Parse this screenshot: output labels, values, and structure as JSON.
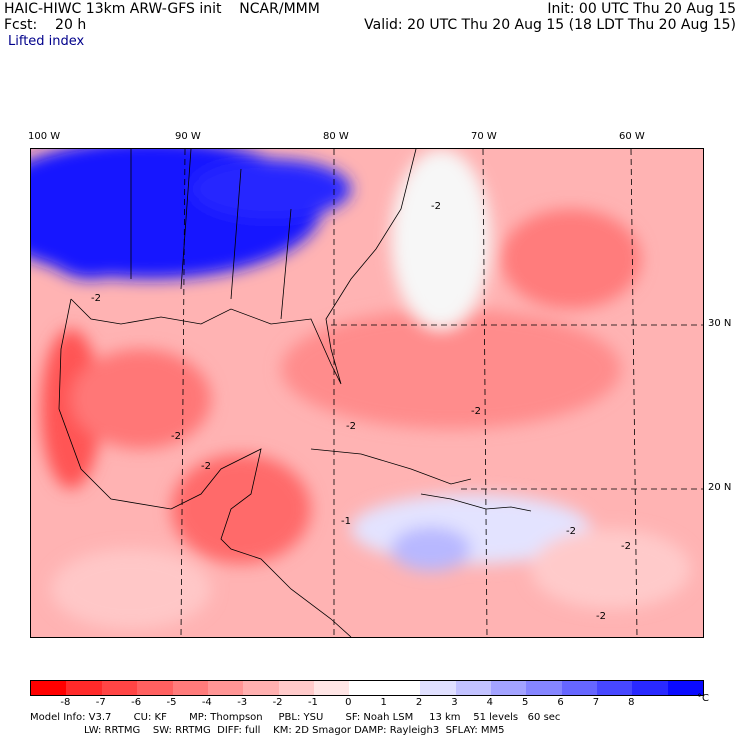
{
  "header": {
    "line1_left": "HAIC-HIWC 13km ARW-GFS init    NCAR/MMM",
    "line2_left": "Fcst:    20 h",
    "line3_left": "Lifted index",
    "line1_right": "Init: 00 UTC Thu 20 Aug 15",
    "line2_right": "Valid: 20 UTC Thu 20 Aug 15 (18 LDT Thu 20 Aug 15)"
  },
  "map": {
    "lon_labels": [
      "100 W",
      "90 W",
      "80 W",
      "70 W",
      "60 W"
    ],
    "lat_labels": [
      "30 N",
      "20 N"
    ],
    "contour_labels": [
      "-2",
      "-2",
      "-2",
      "-2",
      "-2",
      "-1",
      "-2",
      "-2",
      "-2",
      "-2"
    ]
  },
  "colorbar": {
    "colors": [
      "#ff0000",
      "#ff2a2a",
      "#ff4545",
      "#ff6060",
      "#ff7b7b",
      "#ff9595",
      "#ffb0b0",
      "#ffcaca",
      "#ffe5e5",
      "#ffffff",
      "#ffffff",
      "#e0e0ff",
      "#c2c2ff",
      "#a3a3ff",
      "#8585ff",
      "#6666ff",
      "#4747ff",
      "#2929ff",
      "#0a0aff"
    ],
    "labels": [
      "-8",
      "-7",
      "-6",
      "-5",
      "-4",
      "-3",
      "-2",
      "-1",
      "0",
      "1",
      "2",
      "3",
      "4",
      "5",
      "6",
      "7",
      "8"
    ],
    "unit": "°C"
  },
  "footer": {
    "line1": "Model Info: V3.7       CU: KF       MP: Thompson     PBL: YSU       SF: Noah LSM     13 km    51 levels   60 sec",
    "line2": "                 LW: RRTMG    SW: RRTMG  DIFF: full    KM: 2D Smagor DAMP: Rayleigh3  SFLAY: MM5"
  }
}
